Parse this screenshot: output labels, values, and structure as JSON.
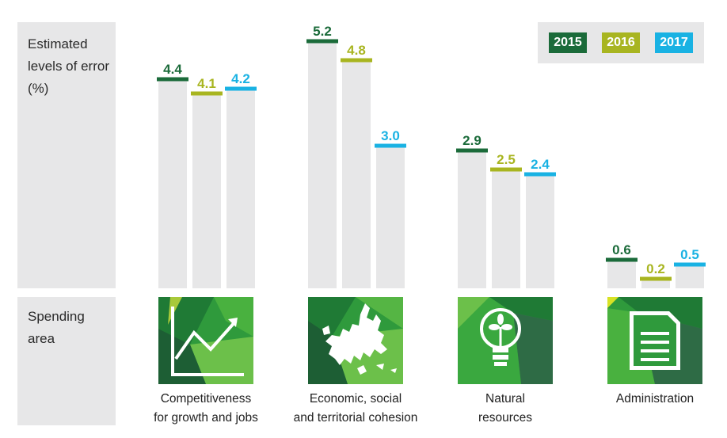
{
  "chart_data": {
    "type": "bar",
    "ylabel": "Estimated\nlevels of error\n(%)",
    "categories": [
      "Competitiveness\nfor growth and jobs",
      "Economic, social\nand territorial cohesion",
      "Natural\nresources",
      "Administration"
    ],
    "series": [
      {
        "name": "2015",
        "color": "#1b6b3a",
        "values": [
          4.4,
          5.2,
          2.9,
          0.6
        ]
      },
      {
        "name": "2016",
        "color": "#a8b520",
        "values": [
          4.1,
          4.8,
          2.5,
          0.2
        ]
      },
      {
        "name": "2017",
        "color": "#19b2e3",
        "values": [
          4.2,
          3.0,
          2.4,
          0.5
        ]
      }
    ],
    "ylim": [
      0,
      5.6
    ],
    "value_labels": [
      [
        "4.4",
        "4.1",
        "4.2"
      ],
      [
        "5.2",
        "4.8",
        "3.0"
      ],
      [
        "2.9",
        "2.5",
        "2.4"
      ],
      [
        "0.6",
        "0.2",
        "0.5"
      ]
    ],
    "legend": "top-right",
    "bar_fill": "#e7e7e8"
  },
  "spending_area_label": "Spending\narea",
  "icons": [
    "growth-chart-icon",
    "europe-map-icon",
    "lightbulb-plant-icon",
    "document-icon"
  ]
}
